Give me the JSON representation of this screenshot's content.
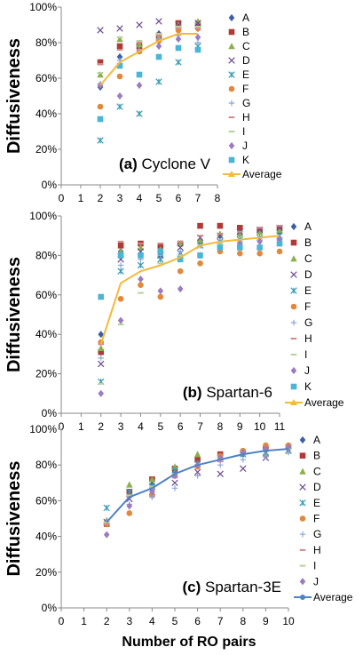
{
  "x_axis_label": "Number of RO pairs",
  "colors": {
    "A": "#3a5fa8",
    "B": "#b23a36",
    "C": "#88b04b",
    "D": "#6b4b93",
    "E": "#3a9bb5",
    "F": "#e2883a",
    "G": "#8ea6d8",
    "H": "#d08a8a",
    "I": "#b7d19a",
    "J": "#9b7cc0",
    "K": "#4bb5d6",
    "avg_yellow": "#f6b93a",
    "avg_blue": "#4f82c8"
  },
  "chart_data": [
    {
      "type": "scatter",
      "panel_label": "(a)",
      "title": "Cyclone V",
      "ylabel": "Diffusiveness",
      "xlabel": "",
      "xlim": [
        0,
        8
      ],
      "xticks": [
        0,
        1,
        2,
        3,
        4,
        5,
        6,
        7,
        8
      ],
      "ylim": [
        0,
        100
      ],
      "yticks": [
        "0%",
        "20%",
        "40%",
        "60%",
        "80%",
        "100%"
      ],
      "legend_position": "right",
      "x": [
        2,
        3,
        4,
        5,
        6,
        7
      ],
      "series": [
        {
          "name": "A",
          "values": [
            55,
            72,
            77,
            85,
            88,
            88
          ]
        },
        {
          "name": "B",
          "values": [
            69,
            78,
            78,
            84,
            91,
            90
          ]
        },
        {
          "name": "C",
          "values": [
            62,
            82,
            79,
            83,
            90,
            92
          ]
        },
        {
          "name": "D",
          "values": [
            87,
            88,
            90,
            92,
            90,
            91
          ]
        },
        {
          "name": "E",
          "values": [
            25,
            44,
            40,
            58,
            69,
            78
          ]
        },
        {
          "name": "F",
          "values": [
            44,
            61,
            75,
            81,
            87,
            88
          ]
        },
        {
          "name": "G",
          "values": [
            57,
            70,
            76,
            82,
            84,
            80
          ]
        },
        {
          "name": "H",
          "values": [
            68,
            76,
            80,
            84,
            88,
            88
          ]
        },
        {
          "name": "I",
          "values": [
            63,
            83,
            81,
            85,
            89,
            89
          ]
        },
        {
          "name": "J",
          "values": [
            56,
            50,
            56,
            78,
            82,
            83
          ]
        },
        {
          "name": "K",
          "values": [
            37,
            67,
            62,
            72,
            77,
            76
          ]
        },
        {
          "name": "Average",
          "values": [
            56,
            69,
            75,
            81,
            85,
            85
          ],
          "line": true,
          "color_key": "avg_yellow"
        }
      ]
    },
    {
      "type": "scatter",
      "panel_label": "(b)",
      "title": "Spartan-6",
      "ylabel": "Diffusiveness",
      "xlabel": "",
      "xlim": [
        0,
        11
      ],
      "xticks": [
        0,
        1,
        2,
        3,
        4,
        5,
        6,
        7,
        8,
        9,
        10,
        11
      ],
      "ylim": [
        0,
        100
      ],
      "yticks": [
        "0%",
        "20%",
        "40%",
        "60%",
        "80%",
        "100%"
      ],
      "legend_position": "right",
      "x": [
        2,
        3,
        4,
        5,
        6,
        7,
        8,
        9,
        10,
        11
      ],
      "series": [
        {
          "name": "A",
          "values": [
            40,
            82,
            80,
            80,
            80,
            87,
            90,
            91,
            92,
            92
          ]
        },
        {
          "name": "B",
          "values": [
            31,
            85,
            86,
            85,
            86,
            95,
            95,
            94,
            93,
            94
          ]
        },
        {
          "name": "C",
          "values": [
            33,
            82,
            84,
            83,
            86,
            88,
            91,
            91,
            92,
            93
          ]
        },
        {
          "name": "D",
          "values": [
            25,
            78,
            82,
            80,
            84,
            89,
            90,
            92,
            93,
            94
          ]
        },
        {
          "name": "E",
          "values": [
            16,
            72,
            75,
            78,
            81,
            85,
            87,
            88,
            89,
            90
          ]
        },
        {
          "name": "F",
          "values": [
            36,
            58,
            65,
            59,
            72,
            76,
            82,
            81,
            81,
            82
          ]
        },
        {
          "name": "G",
          "values": [
            28,
            75,
            78,
            80,
            82,
            85,
            86,
            87,
            88,
            89
          ]
        },
        {
          "name": "H",
          "values": [
            35,
            87,
            86,
            86,
            87,
            90,
            91,
            92,
            94,
            95
          ]
        },
        {
          "name": "I",
          "values": [
            15,
            45,
            61,
            76,
            80,
            85,
            86,
            87,
            88,
            88
          ]
        },
        {
          "name": "J",
          "values": [
            10,
            47,
            68,
            62,
            63,
            80,
            84,
            86,
            87,
            88
          ]
        },
        {
          "name": "K",
          "values": [
            59,
            80,
            80,
            82,
            78,
            80,
            84,
            84,
            84,
            86
          ]
        },
        {
          "name": "Average",
          "values": [
            35,
            66,
            72,
            75,
            79,
            85,
            87,
            88,
            89,
            90
          ],
          "line": true,
          "color_key": "avg_yellow"
        }
      ]
    },
    {
      "type": "scatter",
      "panel_label": "(c)",
      "title": "Spartan-3E",
      "ylabel": "Diffusiveness",
      "xlabel": "Number of RO pairs",
      "xlim": [
        0,
        10
      ],
      "xticks": [
        0,
        1,
        2,
        3,
        4,
        5,
        6,
        7,
        8,
        9,
        10
      ],
      "ylim": [
        0,
        100
      ],
      "yticks": [
        "0%",
        "20%",
        "40%",
        "60%",
        "80%",
        "100%"
      ],
      "legend_position": "right",
      "x": [
        2,
        3,
        4,
        5,
        6,
        7,
        8,
        9,
        10
      ],
      "series": [
        {
          "name": "A",
          "values": [
            47,
            63,
            69,
            76,
            82,
            85,
            86,
            88,
            89
          ]
        },
        {
          "name": "B",
          "values": [
            47,
            65,
            72,
            78,
            83,
            86,
            87,
            89,
            90
          ]
        },
        {
          "name": "C",
          "values": [
            49,
            69,
            72,
            79,
            86,
            85,
            87,
            86,
            88
          ]
        },
        {
          "name": "D",
          "values": [
            48,
            61,
            65,
            70,
            76,
            75,
            78,
            84,
            88
          ]
        },
        {
          "name": "E",
          "values": [
            56,
            65,
            68,
            77,
            81,
            84,
            86,
            87,
            88
          ]
        },
        {
          "name": "F",
          "values": [
            47,
            53,
            63,
            74,
            79,
            85,
            88,
            91,
            91
          ]
        },
        {
          "name": "G",
          "values": [
            48,
            58,
            62,
            67,
            74,
            80,
            83,
            85,
            87
          ]
        },
        {
          "name": "H",
          "values": [
            47,
            62,
            67,
            73,
            79,
            82,
            86,
            88,
            90
          ]
        },
        {
          "name": "I",
          "values": [
            48,
            63,
            68,
            75,
            80,
            84,
            86,
            88,
            89
          ]
        },
        {
          "name": "J",
          "values": [
            41,
            57,
            65,
            74,
            80,
            84,
            87,
            89,
            90
          ]
        },
        {
          "name": "Average",
          "values": [
            48,
            62,
            67,
            75,
            80,
            83,
            86,
            88,
            89
          ],
          "line": true,
          "color_key": "avg_blue"
        }
      ]
    }
  ]
}
